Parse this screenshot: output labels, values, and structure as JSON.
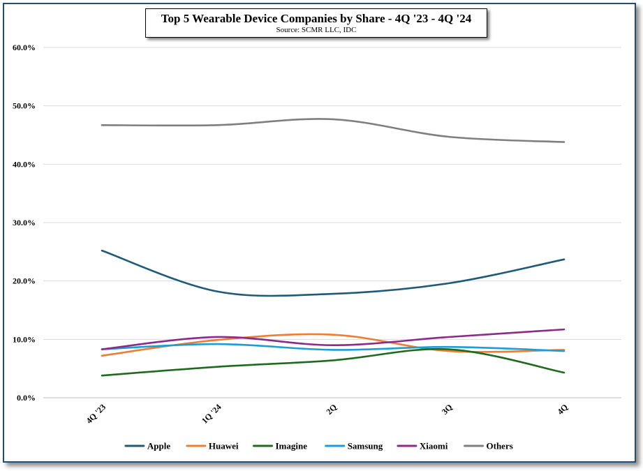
{
  "chart_data": {
    "type": "line",
    "title": "Top 5 Wearable Device Companies by Share - 4Q '23 - 4Q '24",
    "subtitle": "Source: SCMR LLC, IDC",
    "xlabel": "",
    "ylabel": "",
    "categories": [
      "4Q '23",
      "1Q '24",
      "2Q",
      "3Q",
      "4Q"
    ],
    "ylim": [
      0,
      60
    ],
    "yticks": [
      0,
      10,
      20,
      30,
      40,
      50,
      60
    ],
    "ytick_labels": [
      "0.0%",
      "10.0%",
      "20.0%",
      "30.0%",
      "40.0%",
      "50.0%",
      "60.0%"
    ],
    "grid": true,
    "legend_position": "bottom",
    "series": [
      {
        "name": "Apple",
        "color": "#1f5a7a",
        "values": [
          25.2,
          18.2,
          17.8,
          19.6,
          23.7
        ]
      },
      {
        "name": "Huawei",
        "color": "#ed7d31",
        "values": [
          7.2,
          9.9,
          10.8,
          8.0,
          8.2
        ]
      },
      {
        "name": "Imagine",
        "color": "#1e6b1e",
        "values": [
          3.8,
          5.3,
          6.4,
          8.3,
          4.3
        ]
      },
      {
        "name": "Samsung",
        "color": "#1a9ed4",
        "values": [
          8.3,
          9.2,
          8.2,
          8.7,
          8.0
        ]
      },
      {
        "name": "Xiaomi",
        "color": "#8b2a8b",
        "values": [
          8.3,
          10.4,
          9.0,
          10.4,
          11.7
        ]
      },
      {
        "name": "Others",
        "color": "#7f7f7f",
        "values": [
          46.7,
          46.7,
          47.7,
          44.7,
          43.8
        ]
      }
    ]
  }
}
